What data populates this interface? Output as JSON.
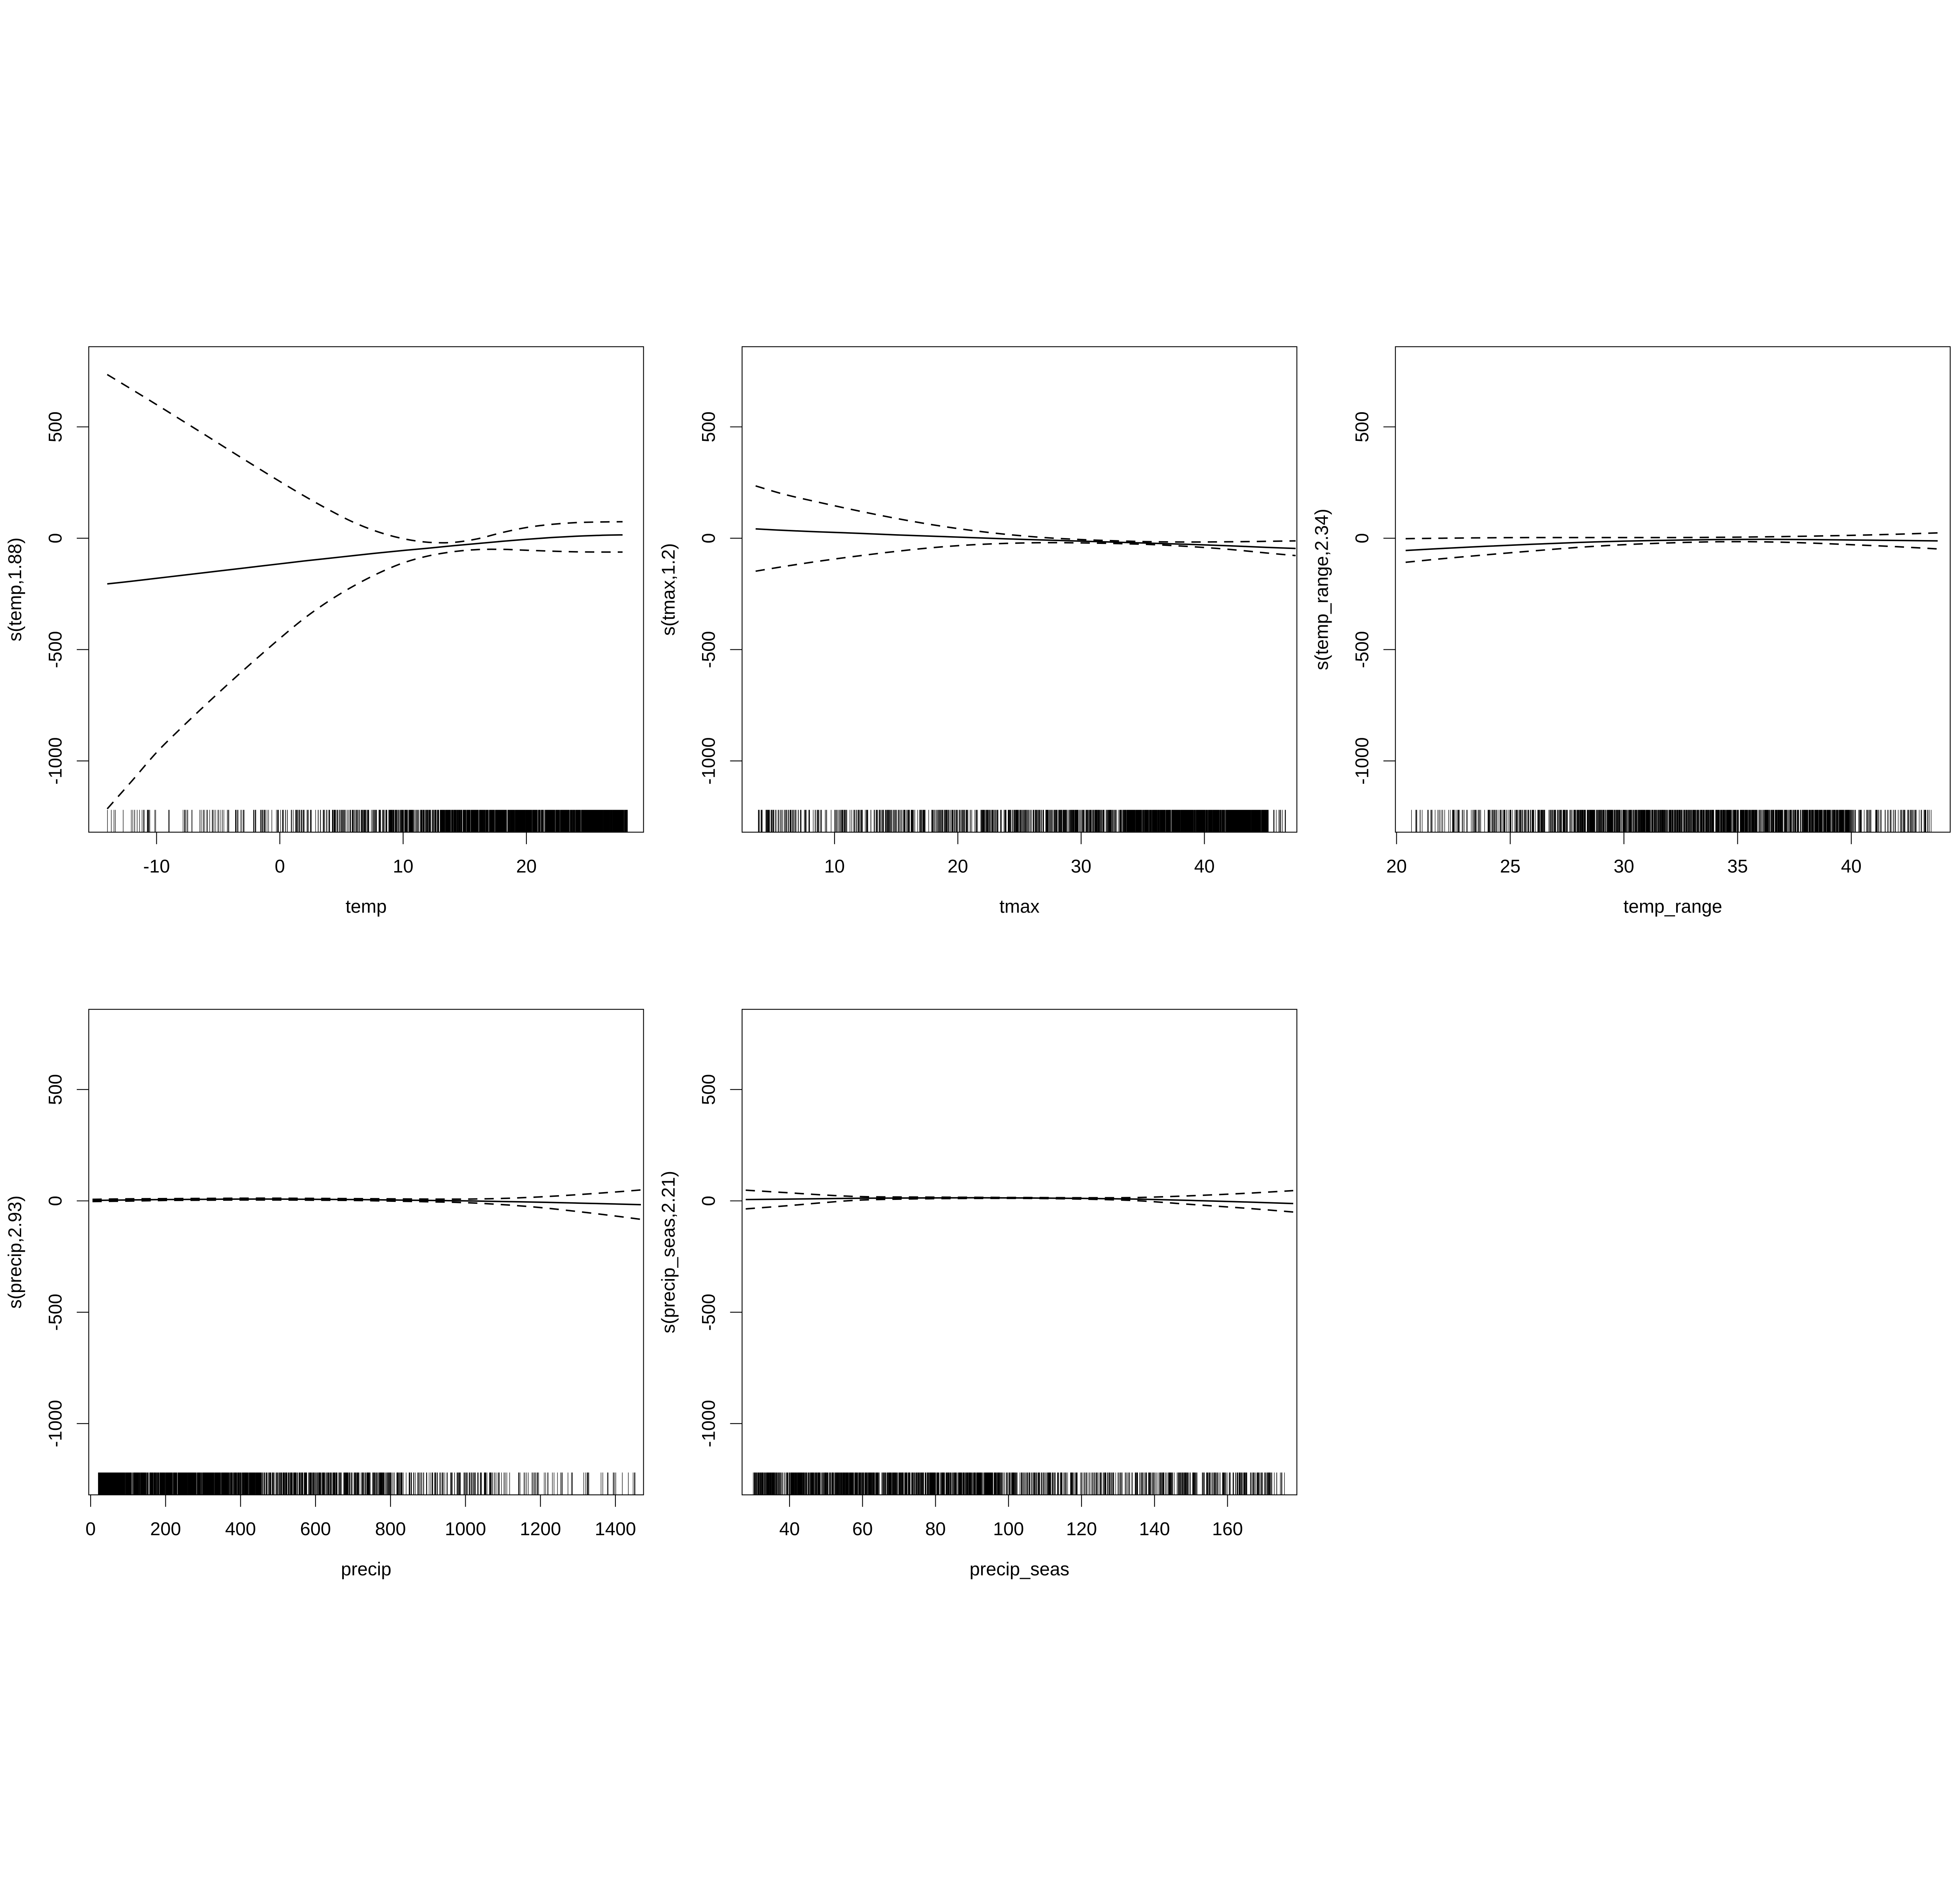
{
  "figure": {
    "background": "#ffffff",
    "ink_color": "#000000"
  },
  "chart_data": {
    "type": "line",
    "title": "",
    "grid": "off",
    "legend": "none",
    "ydomain": [
      -1320,
      860
    ],
    "yticks": [
      500,
      0,
      -500,
      -1000
    ],
    "panels": [
      {
        "name": "temp",
        "row": 0,
        "col": 0,
        "xlabel": "temp",
        "ylabel": "s(temp,1.88)",
        "xdomain": [
          -15.5,
          29.5
        ],
        "xticks": [
          -10,
          0,
          10,
          20
        ],
        "rug_seed": 11,
        "x": [
          -14,
          -12,
          -10,
          -8,
          -6,
          -4,
          -2,
          0,
          2,
          4,
          6,
          8,
          10,
          12,
          14,
          16,
          18,
          20,
          22,
          24,
          26,
          27.8
        ],
        "fit": [
          -205,
          -193,
          -180,
          -167,
          -154,
          -141,
          -128,
          -115,
          -102,
          -90,
          -78,
          -66,
          -55,
          -45,
          -34,
          -24,
          -14,
          -5,
          3,
          9,
          13,
          15
        ],
        "upper": [
          735,
          668,
          600,
          531,
          462,
          392,
          323,
          255,
          189,
          127,
          71,
          28,
          -2,
          -18,
          -19,
          -3,
          25,
          48,
          62,
          70,
          73,
          74
        ],
        "lower": [
          -1215,
          -1090,
          -962,
          -852,
          -747,
          -645,
          -546,
          -450,
          -359,
          -281,
          -214,
          -157,
          -111,
          -80,
          -61,
          -51,
          -50,
          -54,
          -58,
          -61,
          -62,
          -62
        ],
        "rug_segments": [
          [
            -14.5,
            -8,
            25
          ],
          [
            -8,
            -2,
            45
          ],
          [
            -2,
            4,
            70
          ],
          [
            4,
            9,
            110
          ],
          [
            9,
            13,
            160
          ],
          [
            13,
            17,
            280
          ],
          [
            17,
            28.2,
            1100
          ]
        ]
      },
      {
        "name": "tmax",
        "row": 0,
        "col": 1,
        "xlabel": "tmax",
        "ylabel": "s(tmax,1.2)",
        "xdomain": [
          2.5,
          47.5
        ],
        "xticks": [
          10,
          20,
          30,
          40
        ],
        "rug_seed": 22,
        "x": [
          3.6,
          6,
          9,
          12,
          15,
          18,
          21,
          24,
          27,
          30,
          33,
          36,
          39,
          42,
          45,
          47.4
        ],
        "fit": [
          42,
          35,
          28,
          22,
          15,
          9,
          3,
          -3,
          -8,
          -13,
          -18,
          -23,
          -28,
          -34,
          -41,
          -46
        ],
        "upper": [
          235,
          196,
          158,
          122,
          89,
          60,
          36,
          17,
          3,
          -6,
          -12,
          -16,
          -17,
          -16,
          -14,
          -12
        ],
        "lower": [
          -148,
          -126,
          -101,
          -79,
          -59,
          -42,
          -30,
          -23,
          -20,
          -21,
          -24,
          -29,
          -38,
          -50,
          -66,
          -78
        ],
        "rug_segments": [
          [
            3.8,
            10,
            90
          ],
          [
            10,
            18,
            150
          ],
          [
            18,
            26,
            190
          ],
          [
            26,
            33.5,
            260
          ],
          [
            33.5,
            45.2,
            1100
          ],
          [
            45.6,
            46.6,
            12
          ]
        ]
      },
      {
        "name": "temp_range",
        "row": 0,
        "col": 2,
        "xlabel": "temp_range",
        "ylabel": "s(temp_range,2.34)",
        "xdomain": [
          19.95,
          44.35
        ],
        "xticks": [
          20,
          25,
          30,
          35,
          40
        ],
        "rug_seed": 33,
        "x": [
          20.4,
          22,
          24,
          26,
          28,
          30,
          32,
          34,
          36,
          38,
          40,
          42,
          43.8
        ],
        "fit": [
          -55,
          -46,
          -36,
          -27,
          -19,
          -13,
          -9,
          -6,
          -5,
          -6,
          -8,
          -10,
          -12
        ],
        "upper": [
          -2,
          0,
          2,
          3,
          3,
          3,
          3,
          4,
          6,
          9,
          13,
          18,
          24
        ],
        "lower": [
          -108,
          -92,
          -74,
          -57,
          -41,
          -29,
          -21,
          -16,
          -16,
          -21,
          -29,
          -38,
          -48
        ],
        "rug_segments": [
          [
            20.6,
            24,
            55
          ],
          [
            24,
            28,
            170
          ],
          [
            28,
            40,
            1100
          ],
          [
            40,
            43.6,
            90
          ]
        ]
      },
      {
        "name": "precip",
        "row": 1,
        "col": 0,
        "xlabel": "precip",
        "ylabel": "s(precip,2.93)",
        "xdomain": [
          -5,
          1475
        ],
        "xticks": [
          0,
          200,
          400,
          600,
          800,
          1000,
          1200,
          1400
        ],
        "rug_seed": 44,
        "x": [
          5,
          100,
          200,
          300,
          400,
          500,
          600,
          700,
          800,
          900,
          1000,
          1100,
          1200,
          1300,
          1400,
          1468
        ],
        "fit": [
          2,
          4,
          6,
          7,
          8,
          8,
          7,
          6,
          4,
          2,
          0,
          -3,
          -6,
          -10,
          -14,
          -17
        ],
        "upper": [
          7,
          9,
          10,
          11,
          12,
          12,
          11,
          10,
          9,
          8,
          8,
          11,
          18,
          28,
          40,
          49
        ],
        "lower": [
          -3,
          -1,
          2,
          3,
          4,
          4,
          3,
          2,
          -1,
          -4,
          -8,
          -17,
          -30,
          -48,
          -68,
          -83
        ],
        "rug_segments": [
          [
            20,
            250,
            700
          ],
          [
            250,
            460,
            500
          ],
          [
            460,
            830,
            380
          ],
          [
            830,
            1100,
            110
          ],
          [
            1100,
            1458,
            55
          ]
        ]
      },
      {
        "name": "precip_seas",
        "row": 1,
        "col": 1,
        "xlabel": "precip_seas",
        "ylabel": "s(precip_seas,2.21)",
        "xdomain": [
          27,
          179
        ],
        "xticks": [
          40,
          60,
          80,
          100,
          120,
          140,
          160
        ],
        "rug_seed": 55,
        "x": [
          28,
          40,
          50,
          60,
          75,
          90,
          105,
          120,
          135,
          150,
          165,
          178
        ],
        "fit": [
          6,
          8,
          10,
          12,
          13,
          14,
          13,
          11,
          8,
          2,
          -5,
          -12
        ],
        "upper": [
          48,
          36,
          26,
          19,
          17,
          16,
          15,
          14,
          15,
          23,
          34,
          46
        ],
        "lower": [
          -36,
          -21,
          -7,
          4,
          9,
          11,
          11,
          8,
          1,
          -16,
          -33,
          -50
        ],
        "rug_segments": [
          [
            30,
            98,
            1000
          ],
          [
            98,
            140,
            240
          ],
          [
            140,
            172,
            220
          ],
          [
            172,
            176,
            8
          ]
        ]
      }
    ]
  }
}
